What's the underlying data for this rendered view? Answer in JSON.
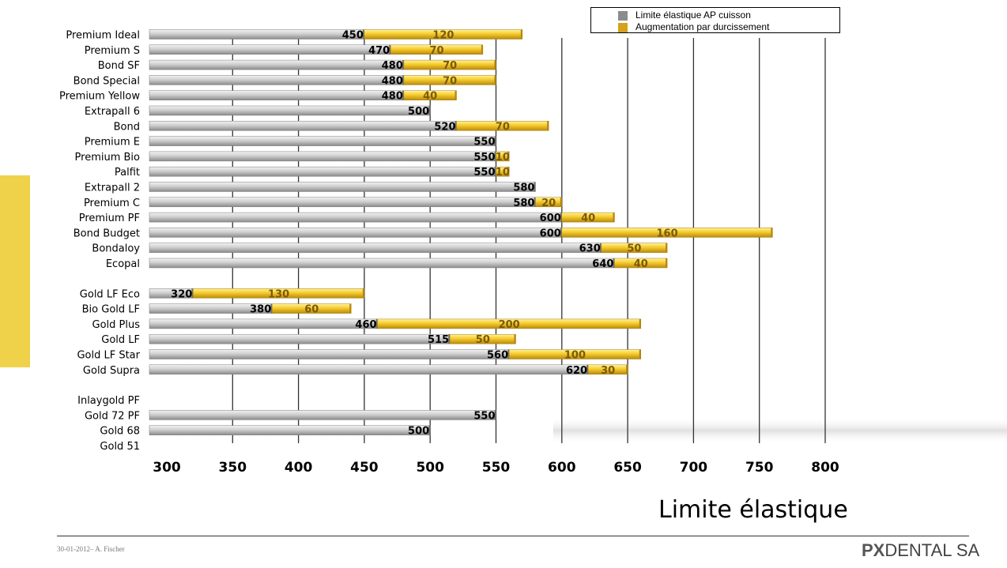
{
  "chart_data": {
    "type": "bar",
    "orientation": "horizontal",
    "stacked": true,
    "xlabel": "Limite élastique",
    "xlim": [
      300,
      800
    ],
    "xticks": [
      "300",
      "350",
      "400",
      "450",
      "500",
      "550",
      "600",
      "650",
      "700",
      "750",
      "800"
    ],
    "grid": "vertical-major",
    "legend_position": "top-right",
    "series": [
      {
        "name": "Limite élastique AP cuisson",
        "color": "#8c8c8c"
      },
      {
        "name": "Augmentation par durcissement",
        "color": "#d4a21c"
      }
    ],
    "groups": [
      {
        "categories": [
          {
            "label": "Premium Ideal",
            "base": 450,
            "increase": 120
          },
          {
            "label": "Premium S",
            "base": 470,
            "increase": 70
          },
          {
            "label": "Bond SF",
            "base": 480,
            "increase": 70
          },
          {
            "label": "Bond Special",
            "base": 480,
            "increase": 70
          },
          {
            "label": "Premium Yellow",
            "base": 480,
            "increase": 40
          },
          {
            "label": "Extrapall 6",
            "base": 500,
            "increase": null
          },
          {
            "label": "Bond",
            "base": 520,
            "increase": 70
          },
          {
            "label": "Premium E",
            "base": 550,
            "increase": null
          },
          {
            "label": "Premium Bio",
            "base": 550,
            "increase": 10
          },
          {
            "label": "Palfit",
            "base": 550,
            "increase": 10
          },
          {
            "label": "Extrapall 2",
            "base": 580,
            "increase": null
          },
          {
            "label": "Premium C",
            "base": 580,
            "increase": 20
          },
          {
            "label": "Premium PF",
            "base": 600,
            "increase": 40
          },
          {
            "label": "Bond Budget",
            "base": 600,
            "increase": 160
          },
          {
            "label": "Bondaloy",
            "base": 630,
            "increase": 50
          },
          {
            "label": "Ecopal",
            "base": 640,
            "increase": 40
          }
        ]
      },
      {
        "categories": [
          {
            "label": "Gold LF Eco",
            "base": 320,
            "increase": 130
          },
          {
            "label": "Bio Gold LF",
            "base": 380,
            "increase": 60
          },
          {
            "label": "Gold Plus",
            "base": 460,
            "increase": 200
          },
          {
            "label": "Gold LF",
            "base": 515,
            "increase": 50
          },
          {
            "label": "Gold LF Star",
            "base": 560,
            "increase": 100
          },
          {
            "label": "Gold Supra",
            "base": 620,
            "increase": 30
          }
        ]
      },
      {
        "categories": [
          {
            "label": "Inlaygold PF",
            "base": null,
            "increase": null
          },
          {
            "label": "Gold 72 PF",
            "base": 550,
            "increase": null
          },
          {
            "label": "Gold 68",
            "base": 500,
            "increase": null
          },
          {
            "label": "Gold 51",
            "base": null,
            "increase": null
          }
        ]
      }
    ]
  },
  "legend": {
    "item1": "Limite élastique AP cuisson",
    "item2": "Augmentation par durcissement"
  },
  "footer": {
    "date": "30-01-2012– A. Fischer",
    "logo_bold": "PX",
    "logo_text": "DENTAL SA"
  },
  "colors": {
    "accent": "#f0d24a",
    "base_bar": "#8c8c8c",
    "increase_bar": "#d4a21c"
  }
}
